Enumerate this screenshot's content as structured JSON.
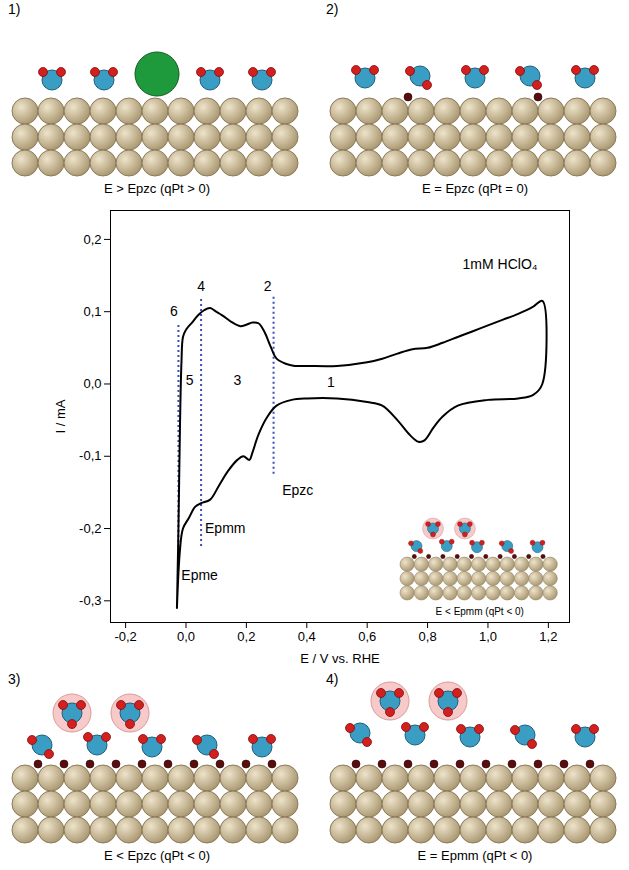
{
  "chart_data": {
    "type": "line",
    "color": "#000000",
    "xlabel": "E / V vs. RHE",
    "ylabel": "I / mA",
    "x": [
      -0.03,
      -0.025,
      -0.02,
      -0.015,
      -0.01,
      0.0,
      0.02,
      0.04,
      0.06,
      0.08,
      0.1,
      0.12,
      0.15,
      0.18,
      0.2,
      0.22,
      0.24,
      0.26,
      0.28,
      0.3,
      0.33,
      0.36,
      0.4,
      0.5,
      0.6,
      0.65,
      0.7,
      0.75,
      0.8,
      0.85,
      0.9,
      0.95,
      1.0,
      1.05,
      1.1,
      1.15,
      1.18,
      1.18,
      1.15,
      1.1,
      1.0,
      0.9,
      0.85,
      0.82,
      0.79,
      0.77,
      0.74,
      0.7,
      0.65,
      0.6,
      0.5,
      0.4,
      0.35,
      0.3,
      0.27,
      0.24,
      0.22,
      0.21,
      0.19,
      0.17,
      0.14,
      0.11,
      0.08,
      0.05,
      0.03,
      0.01,
      -0.01,
      -0.02,
      -0.03
    ],
    "values": [
      -0.31,
      -0.2,
      -0.06,
      0.03,
      0.065,
      0.075,
      0.085,
      0.095,
      0.102,
      0.105,
      0.1,
      0.095,
      0.086,
      0.08,
      0.082,
      0.085,
      0.084,
      0.072,
      0.052,
      0.035,
      0.028,
      0.025,
      0.025,
      0.025,
      0.03,
      0.035,
      0.042,
      0.048,
      0.05,
      0.057,
      0.065,
      0.073,
      0.081,
      0.089,
      0.097,
      0.107,
      0.115,
      0.0,
      -0.015,
      -0.02,
      -0.022,
      -0.03,
      -0.045,
      -0.06,
      -0.078,
      -0.08,
      -0.07,
      -0.05,
      -0.03,
      -0.025,
      -0.02,
      -0.02,
      -0.022,
      -0.03,
      -0.045,
      -0.07,
      -0.095,
      -0.105,
      -0.1,
      -0.105,
      -0.12,
      -0.14,
      -0.16,
      -0.165,
      -0.17,
      -0.185,
      -0.2,
      -0.23,
      -0.31
    ],
    "xlim": [
      -0.25,
      1.27
    ],
    "ylim": [
      -0.33,
      0.24
    ],
    "xticks": [
      {
        "value": -0.2,
        "label": "-0,2"
      },
      {
        "value": 0.0,
        "label": "0,0"
      },
      {
        "value": 0.2,
        "label": "0,2"
      },
      {
        "value": 0.4,
        "label": "0,4"
      },
      {
        "value": 0.6,
        "label": "0,6"
      },
      {
        "value": 0.8,
        "label": "0,8"
      },
      {
        "value": 1.0,
        "label": "1,0"
      },
      {
        "value": 1.2,
        "label": "1,2"
      }
    ],
    "yticks": [
      {
        "value": -0.3,
        "label": "-0,3"
      },
      {
        "value": -0.2,
        "label": "-0,2"
      },
      {
        "value": -0.1,
        "label": "-0,1"
      },
      {
        "value": 0.0,
        "label": "0,0"
      },
      {
        "value": 0.1,
        "label": "0,1"
      },
      {
        "value": 0.2,
        "label": "0,2"
      }
    ],
    "guides": [
      {
        "x": -0.025,
        "y": [
          -0.24,
          0.085
        ]
      },
      {
        "x": 0.05,
        "y": [
          -0.225,
          0.12
        ]
      },
      {
        "x": 0.29,
        "y": [
          -0.125,
          0.12
        ]
      }
    ],
    "annotations": [
      {
        "text": "1mM HClO₄",
        "x": 1.04,
        "y": 0.165
      },
      {
        "text": "6",
        "x": -0.04,
        "y": 0.1
      },
      {
        "text": "4",
        "x": 0.05,
        "y": 0.135
      },
      {
        "text": "2",
        "x": 0.27,
        "y": 0.135
      },
      {
        "text": "5",
        "x": 0.012,
        "y": 0.005
      },
      {
        "text": "3",
        "x": 0.17,
        "y": 0.005
      },
      {
        "text": "1",
        "x": 0.48,
        "y": 0.002
      },
      {
        "text": "Epzc",
        "x": 0.37,
        "y": -0.147
      },
      {
        "text": "Epmm",
        "x": 0.13,
        "y": -0.2
      },
      {
        "text": "Epme",
        "x": 0.045,
        "y": -0.265
      }
    ]
  },
  "inset": {
    "caption": "E < Epmm (qPt < 0)"
  },
  "panels": [
    {
      "label": "1)",
      "caption": "E > Epzc (qPt > 0)"
    },
    {
      "label": "2)",
      "caption": "E = Epzc (qPt = 0)"
    },
    {
      "label": "3)",
      "caption": "E < Epzc (qPt < 0)"
    },
    {
      "label": "4)",
      "caption": "E = Epmm (qPt < 0)"
    }
  ]
}
